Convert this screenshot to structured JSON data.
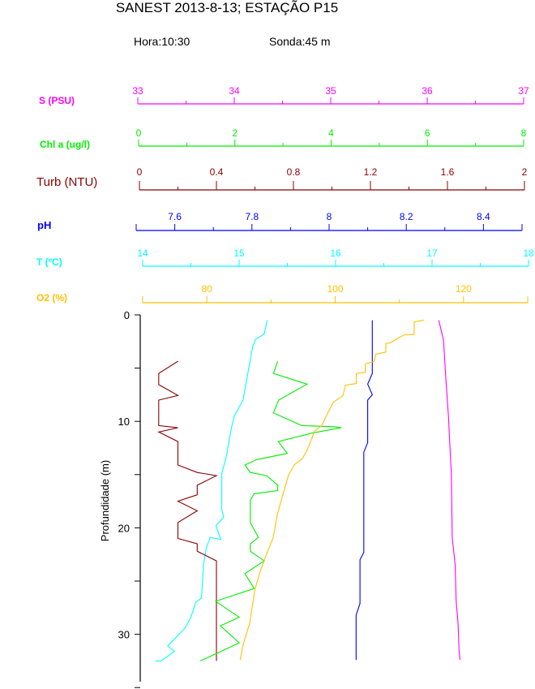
{
  "header": {
    "title": "SANEST 2013-8-13; ESTAÇÃO P15",
    "hora": "Hora:10:30",
    "sonda": "Sonda:45 m"
  },
  "chart_data": {
    "type": "line",
    "title": "SANEST 2013-8-13; ESTAÇÃO P15",
    "ylabel": "Profundidade (m)",
    "ylim": [
      0,
      35
    ],
    "y_inverted": true,
    "y_ticks": [
      0,
      10,
      20,
      30
    ],
    "grid": false,
    "legend": "none (stacked top axes act as legend)",
    "axes": [
      {
        "key": "S",
        "label": "S (PSU)",
        "color": "#ff00ff",
        "range": [
          33,
          37
        ],
        "ticks": [
          33,
          34,
          35,
          36,
          37
        ],
        "minor_step": 0.5
      },
      {
        "key": "Chl",
        "label": "Chl a (ug/l)",
        "color": "#00ee00",
        "range": [
          0,
          8
        ],
        "ticks": [
          0,
          2,
          4,
          6,
          8
        ],
        "minor_step": 1
      },
      {
        "key": "Turb",
        "label": "Turb (NTU)",
        "color": "#8b0000",
        "range": [
          0,
          2
        ],
        "ticks": [
          0,
          0.4,
          0.8,
          1.2,
          1.6,
          2
        ],
        "minor_step": 0.2
      },
      {
        "key": "pH",
        "label": "pH",
        "color": "#0000ff",
        "range": [
          7.5,
          8.5
        ],
        "ticks": [
          7.6,
          7.8,
          8,
          8.2,
          8.4
        ],
        "minor_step": 0.1
      },
      {
        "key": "T",
        "label": "T (ºC)",
        "color": "#00ffff",
        "range": [
          14,
          18
        ],
        "ticks": [
          14,
          15,
          16,
          17,
          18
        ],
        "minor_step": 0.5
      },
      {
        "key": "O2",
        "label": "O2 (%)",
        "color": "#ffc000",
        "range": [
          70,
          130
        ],
        "ticks": [
          80,
          100,
          120
        ],
        "minor_step": 10
      }
    ],
    "series": [
      {
        "key": "S",
        "points": [
          [
            36.12,
            0.5
          ],
          [
            36.17,
            2.4
          ],
          [
            36.19,
            5.5
          ],
          [
            36.22,
            9.5
          ],
          [
            36.24,
            13.2
          ],
          [
            36.25,
            14.9
          ],
          [
            36.26,
            20.9
          ],
          [
            36.29,
            23.5
          ],
          [
            36.3,
            26.8
          ],
          [
            36.32,
            29
          ],
          [
            36.33,
            31.5
          ],
          [
            36.34,
            32.4
          ]
        ]
      },
      {
        "key": "pH",
        "points": [
          [
            8.112,
            0.5
          ],
          [
            8.112,
            5.5
          ],
          [
            8.1,
            6.5
          ],
          [
            8.112,
            7.5
          ],
          [
            8.1,
            8
          ],
          [
            8.1,
            12
          ],
          [
            8.09,
            12.9
          ],
          [
            8.09,
            22.3
          ],
          [
            8.08,
            23
          ],
          [
            8.08,
            27.1
          ],
          [
            8.07,
            28.2
          ],
          [
            8.07,
            32.4
          ]
        ]
      },
      {
        "key": "T",
        "points": [
          [
            15.29,
            0.5
          ],
          [
            15.26,
            1.8
          ],
          [
            15.17,
            2.3
          ],
          [
            15.14,
            3
          ],
          [
            15.09,
            5.5
          ],
          [
            15.04,
            8
          ],
          [
            14.95,
            9.5
          ],
          [
            14.92,
            10.6
          ],
          [
            14.87,
            13.2
          ],
          [
            14.82,
            14.9
          ],
          [
            14.82,
            18.3
          ],
          [
            14.84,
            19
          ],
          [
            14.76,
            19.8
          ],
          [
            14.81,
            21.1
          ],
          [
            14.7,
            20.9
          ],
          [
            14.66,
            21.9
          ],
          [
            14.63,
            23.5
          ],
          [
            14.61,
            26.6
          ],
          [
            14.55,
            27
          ],
          [
            14.5,
            28.4
          ],
          [
            14.44,
            29.4
          ],
          [
            14.26,
            31.1
          ],
          [
            14.33,
            31.6
          ],
          [
            14.19,
            32.5
          ],
          [
            14.13,
            32.5
          ]
        ]
      },
      {
        "key": "Turb",
        "points": [
          [
            0.2,
            4.35
          ],
          [
            0.1,
            5.5
          ],
          [
            0.1,
            6.55
          ],
          [
            0.2,
            7.57
          ],
          [
            0.1,
            8
          ],
          [
            0.1,
            10.4
          ],
          [
            0.2,
            10.6
          ],
          [
            0.1,
            11
          ],
          [
            0.2,
            11.9
          ],
          [
            0.2,
            14.1
          ],
          [
            0.3,
            14.8
          ],
          [
            0.4,
            15.1
          ],
          [
            0.3,
            16
          ],
          [
            0.3,
            16.9
          ],
          [
            0.2,
            17.5
          ],
          [
            0.3,
            18.4
          ],
          [
            0.2,
            19.5
          ],
          [
            0.2,
            21
          ],
          [
            0.3,
            21.5
          ],
          [
            0.3,
            22.2
          ],
          [
            0.4,
            23.1
          ],
          [
            0.4,
            32.5
          ]
        ]
      },
      {
        "key": "Chl",
        "points": [
          [
            2.89,
            4.35
          ],
          [
            2.8,
            5.5
          ],
          [
            3.5,
            6.5
          ],
          [
            2.91,
            8
          ],
          [
            2.8,
            9.2
          ],
          [
            3.39,
            10.4
          ],
          [
            4.06,
            10.5
          ],
          [
            4.21,
            10.6
          ],
          [
            3.61,
            11.1
          ],
          [
            2.9,
            11.9
          ],
          [
            3.09,
            13
          ],
          [
            2.45,
            13.6
          ],
          [
            2.21,
            14.1
          ],
          [
            2.32,
            14.8
          ],
          [
            2.66,
            15.1
          ],
          [
            2.89,
            16
          ],
          [
            2.89,
            16.5
          ],
          [
            2.4,
            16.8
          ],
          [
            2.32,
            17.4
          ],
          [
            2.32,
            19.5
          ],
          [
            2.49,
            20.9
          ],
          [
            2.32,
            21.5
          ],
          [
            2.32,
            22.2
          ],
          [
            2.61,
            23.1
          ],
          [
            2.21,
            24.3
          ],
          [
            2.4,
            25.7
          ],
          [
            1.6,
            26.9
          ],
          [
            2.09,
            28.4
          ],
          [
            1.7,
            29.2
          ],
          [
            2.09,
            30.8
          ],
          [
            1.62,
            31.8
          ],
          [
            1.28,
            32.5
          ]
        ]
      },
      {
        "key": "O2",
        "points": [
          [
            113.8,
            0.5
          ],
          [
            112.3,
            0.66
          ],
          [
            112.3,
            1.85
          ],
          [
            110.9,
            1.85
          ],
          [
            109.7,
            2.2
          ],
          [
            108.7,
            2.6
          ],
          [
            107.9,
            2.7
          ],
          [
            107.9,
            3.5
          ],
          [
            106.3,
            3.7
          ],
          [
            106.1,
            4.35
          ],
          [
            104.7,
            4.6
          ],
          [
            104.7,
            5.4
          ],
          [
            103.3,
            5.5
          ],
          [
            103.3,
            6.45
          ],
          [
            101.6,
            6.6
          ],
          [
            101.2,
            7.6
          ],
          [
            99.7,
            8.2
          ],
          [
            98.7,
            9.4
          ],
          [
            97.9,
            10.4
          ],
          [
            96.8,
            10.9
          ],
          [
            95.7,
            12.6
          ],
          [
            94.9,
            13.5
          ],
          [
            93.6,
            14.1
          ],
          [
            92.7,
            15.1
          ],
          [
            91.7,
            17.2
          ],
          [
            91,
            18.7
          ],
          [
            90.3,
            21
          ],
          [
            89.4,
            22.3
          ],
          [
            88.2,
            24.3
          ],
          [
            87.5,
            25.8
          ],
          [
            87.1,
            27.3
          ],
          [
            86.7,
            28.9
          ],
          [
            85.6,
            31.1
          ],
          [
            85.2,
            32.4
          ]
        ]
      }
    ]
  }
}
